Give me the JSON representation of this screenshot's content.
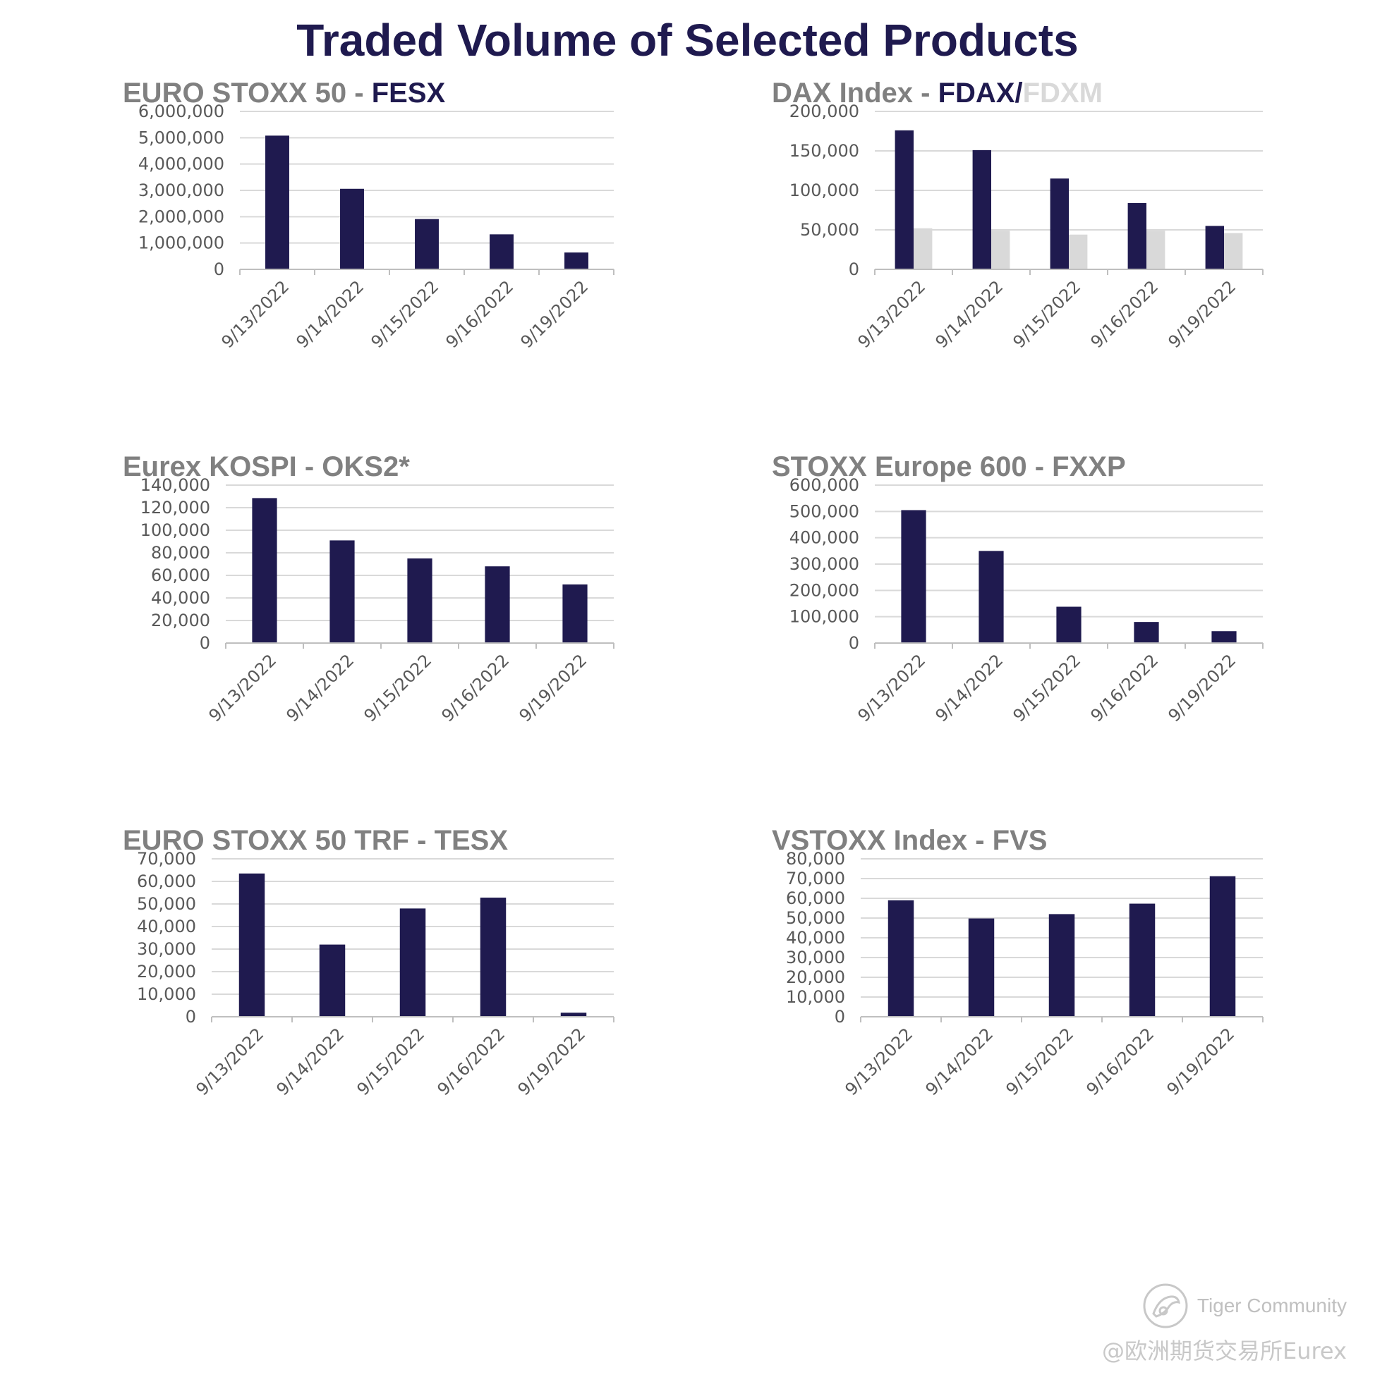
{
  "page_title": "Traded Volume of Selected Products",
  "colors": {
    "dark": "#1f1a4f",
    "light": "#d9d9d9",
    "title_gray": "#808080",
    "grid": "#d9d9d9",
    "axis": "#bfbfbf"
  },
  "watermark": {
    "brand": "Tiger Community",
    "handle": "@欧洲期货交易所Eurex"
  },
  "chart_data": [
    {
      "type": "bar",
      "title_parts": [
        {
          "text": "EURO STOXX 50 - ",
          "style": "gray"
        },
        {
          "text": "FESX",
          "style": "dark"
        }
      ],
      "categories": [
        "9/13/2022",
        "9/14/2022",
        "9/15/2022",
        "9/16/2022",
        "9/19/2022"
      ],
      "series": [
        {
          "values": [
            5080000,
            3060000,
            1910000,
            1330000,
            640000
          ],
          "color": "#1f1a4f"
        }
      ],
      "ylim": [
        0,
        6000000
      ],
      "yticks": [
        "0",
        "1,000,000",
        "2,000,000",
        "3,000,000",
        "4,000,000",
        "5,000,000",
        "6,000,000"
      ],
      "grid": true,
      "legend": "none"
    },
    {
      "type": "bar",
      "title_parts": [
        {
          "text": "DAX Index - ",
          "style": "gray"
        },
        {
          "text": "FDAX",
          "style": "dark"
        },
        {
          "text": "/",
          "style": "dark"
        },
        {
          "text": "FDXM",
          "style": "light"
        }
      ],
      "categories": [
        "9/13/2022",
        "9/14/2022",
        "9/15/2022",
        "9/16/2022",
        "9/19/2022"
      ],
      "series": [
        {
          "values": [
            176000,
            151000,
            115000,
            84000,
            55000
          ],
          "color": "#1f1a4f"
        },
        {
          "values": [
            52000,
            49000,
            44000,
            49000,
            46000
          ],
          "color": "#d9d9d9"
        }
      ],
      "ylim": [
        0,
        200000
      ],
      "yticks": [
        "0",
        "50,000",
        "100,000",
        "150,000",
        "200,000"
      ],
      "grid": true,
      "legend": "none"
    },
    {
      "type": "bar",
      "title_parts": [
        {
          "text": "Eurex KOSPI - OKS2*",
          "style": "gray"
        }
      ],
      "categories": [
        "9/13/2022",
        "9/14/2022",
        "9/15/2022",
        "9/16/2022",
        "9/19/2022"
      ],
      "series": [
        {
          "values": [
            128500,
            91000,
            75000,
            68000,
            52000
          ],
          "color": "#1f1a4f"
        }
      ],
      "ylim": [
        0,
        140000
      ],
      "yticks": [
        "0",
        "20,000",
        "40,000",
        "60,000",
        "80,000",
        "100,000",
        "120,000",
        "140,000"
      ],
      "grid": true,
      "legend": "none"
    },
    {
      "type": "bar",
      "title_parts": [
        {
          "text": "STOXX Europe 600 - FXXP",
          "style": "gray"
        }
      ],
      "categories": [
        "9/13/2022",
        "9/14/2022",
        "9/15/2022",
        "9/16/2022",
        "9/19/2022"
      ],
      "series": [
        {
          "values": [
            505000,
            350000,
            138000,
            80000,
            45000
          ],
          "color": "#1f1a4f"
        }
      ],
      "ylim": [
        0,
        600000
      ],
      "yticks": [
        "0",
        "100,000",
        "200,000",
        "300,000",
        "400,000",
        "500,000",
        "600,000"
      ],
      "grid": true,
      "legend": "none"
    },
    {
      "type": "bar",
      "title_parts": [
        {
          "text": "EURO STOXX 50 TRF - TESX",
          "style": "gray"
        }
      ],
      "categories": [
        "9/13/2022",
        "9/14/2022",
        "9/15/2022",
        "9/16/2022",
        "9/19/2022"
      ],
      "series": [
        {
          "values": [
            63500,
            32000,
            48000,
            52800,
            1800
          ],
          "color": "#1f1a4f"
        }
      ],
      "ylim": [
        0,
        70000
      ],
      "yticks": [
        "0",
        "10,000",
        "20,000",
        "30,000",
        "40,000",
        "50,000",
        "60,000",
        "70,000"
      ],
      "grid": true,
      "legend": "none"
    },
    {
      "type": "bar",
      "title_parts": [
        {
          "text": "VSTOXX Index - FVS",
          "style": "gray"
        }
      ],
      "categories": [
        "9/13/2022",
        "9/14/2022",
        "9/15/2022",
        "9/16/2022",
        "9/19/2022"
      ],
      "series": [
        {
          "values": [
            59000,
            49800,
            52000,
            57300,
            71200
          ],
          "color": "#1f1a4f"
        }
      ],
      "ylim": [
        0,
        80000
      ],
      "yticks": [
        "0",
        "10,000",
        "20,000",
        "30,000",
        "40,000",
        "50,000",
        "60,000",
        "70,000",
        "80,000"
      ],
      "grid": true,
      "legend": "none"
    }
  ]
}
